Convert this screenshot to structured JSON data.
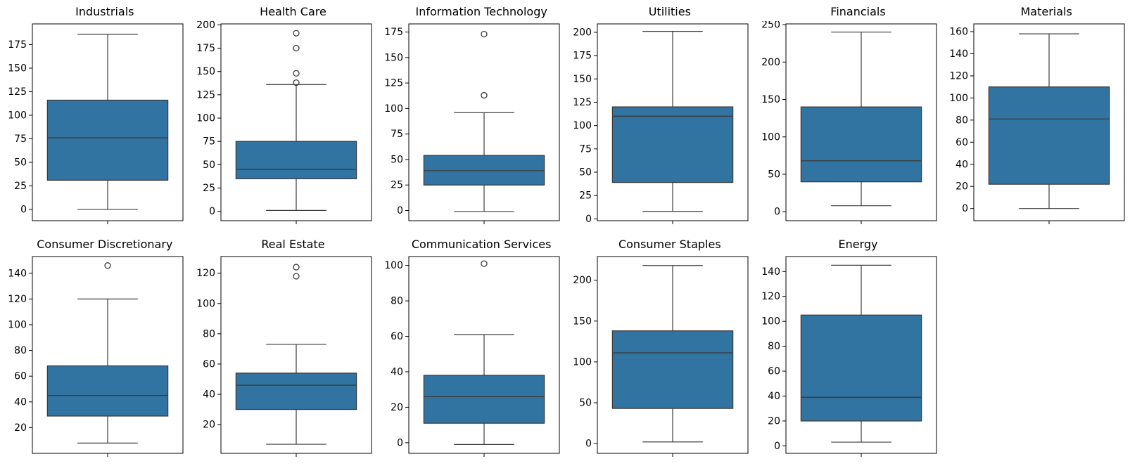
{
  "figure": {
    "layout": "2x6 grid of box plots, 11 subplots",
    "background": "#ffffff"
  },
  "style": {
    "box_fill": "#3274a1",
    "line_color": "#3c3c3c",
    "spine_color": "#000000",
    "tick_label_color": "#000000",
    "outlier_stroke": "#3c3c3c"
  },
  "chart_data": [
    {
      "type": "box",
      "title": "Industrials",
      "ylim": [
        -12,
        197
      ],
      "yticks": [
        0,
        25,
        50,
        75,
        100,
        125,
        150,
        175
      ],
      "whisker_low": 0,
      "q1": 31,
      "median": 76,
      "q3": 116,
      "whisker_high": 186,
      "outliers": []
    },
    {
      "type": "box",
      "title": "Health Care",
      "ylim": [
        -10,
        201
      ],
      "yticks": [
        0,
        25,
        50,
        75,
        100,
        125,
        150,
        175,
        200
      ],
      "whisker_low": 1,
      "q1": 35,
      "median": 45,
      "q3": 75,
      "whisker_high": 136,
      "outliers": [
        138,
        148,
        175,
        191
      ]
    },
    {
      "type": "box",
      "title": "Information Technology",
      "ylim": [
        -10,
        183
      ],
      "yticks": [
        0,
        25,
        50,
        75,
        100,
        125,
        150,
        175
      ],
      "whisker_low": -1,
      "q1": 25,
      "median": 39,
      "q3": 54,
      "whisker_high": 96,
      "outliers": [
        113,
        173
      ]
    },
    {
      "type": "box",
      "title": "Utilities",
      "ylim": [
        -2,
        209
      ],
      "yticks": [
        0,
        25,
        50,
        75,
        100,
        125,
        150,
        175,
        200
      ],
      "whisker_low": 8,
      "q1": 39,
      "median": 110,
      "q3": 120,
      "whisker_high": 201,
      "outliers": []
    },
    {
      "type": "box",
      "title": "Financials",
      "ylim": [
        -12,
        251
      ],
      "yticks": [
        0,
        50,
        100,
        150,
        200,
        250
      ],
      "whisker_low": 8,
      "q1": 40,
      "median": 68,
      "q3": 140,
      "whisker_high": 240,
      "outliers": []
    },
    {
      "type": "box",
      "title": "Materials",
      "ylim": [
        -11,
        167
      ],
      "yticks": [
        0,
        20,
        40,
        60,
        80,
        100,
        120,
        140,
        160
      ],
      "whisker_low": 0,
      "q1": 22,
      "median": 81,
      "q3": 110,
      "whisker_high": 158,
      "outliers": []
    },
    {
      "type": "box",
      "title": "Consumer Discretionary",
      "ylim": [
        0,
        153
      ],
      "yticks": [
        20,
        40,
        60,
        80,
        100,
        120,
        140
      ],
      "whisker_low": 8,
      "q1": 29,
      "median": 45,
      "q3": 68,
      "whisker_high": 120,
      "outliers": [
        146
      ]
    },
    {
      "type": "box",
      "title": "Real Estate",
      "ylim": [
        1,
        131
      ],
      "yticks": [
        20,
        40,
        60,
        80,
        100,
        120
      ],
      "whisker_low": 7,
      "q1": 30,
      "median": 46,
      "q3": 54,
      "whisker_high": 73,
      "outliers": [
        118,
        124
      ]
    },
    {
      "type": "box",
      "title": "Communication Services",
      "ylim": [
        -6,
        105
      ],
      "yticks": [
        0,
        20,
        40,
        60,
        80,
        100
      ],
      "whisker_low": -1,
      "q1": 11,
      "median": 26,
      "q3": 38,
      "whisker_high": 61,
      "outliers": [
        101
      ]
    },
    {
      "type": "box",
      "title": "Consumer Staples",
      "ylim": [
        -12,
        229
      ],
      "yticks": [
        0,
        50,
        100,
        150,
        200
      ],
      "whisker_low": 2,
      "q1": 43,
      "median": 111,
      "q3": 138,
      "whisker_high": 218,
      "outliers": []
    },
    {
      "type": "box",
      "title": "Energy",
      "ylim": [
        -6,
        152
      ],
      "yticks": [
        0,
        20,
        40,
        60,
        80,
        100,
        120,
        140
      ],
      "whisker_low": 3,
      "q1": 20,
      "median": 39,
      "q3": 105,
      "whisker_high": 145,
      "outliers": []
    }
  ]
}
